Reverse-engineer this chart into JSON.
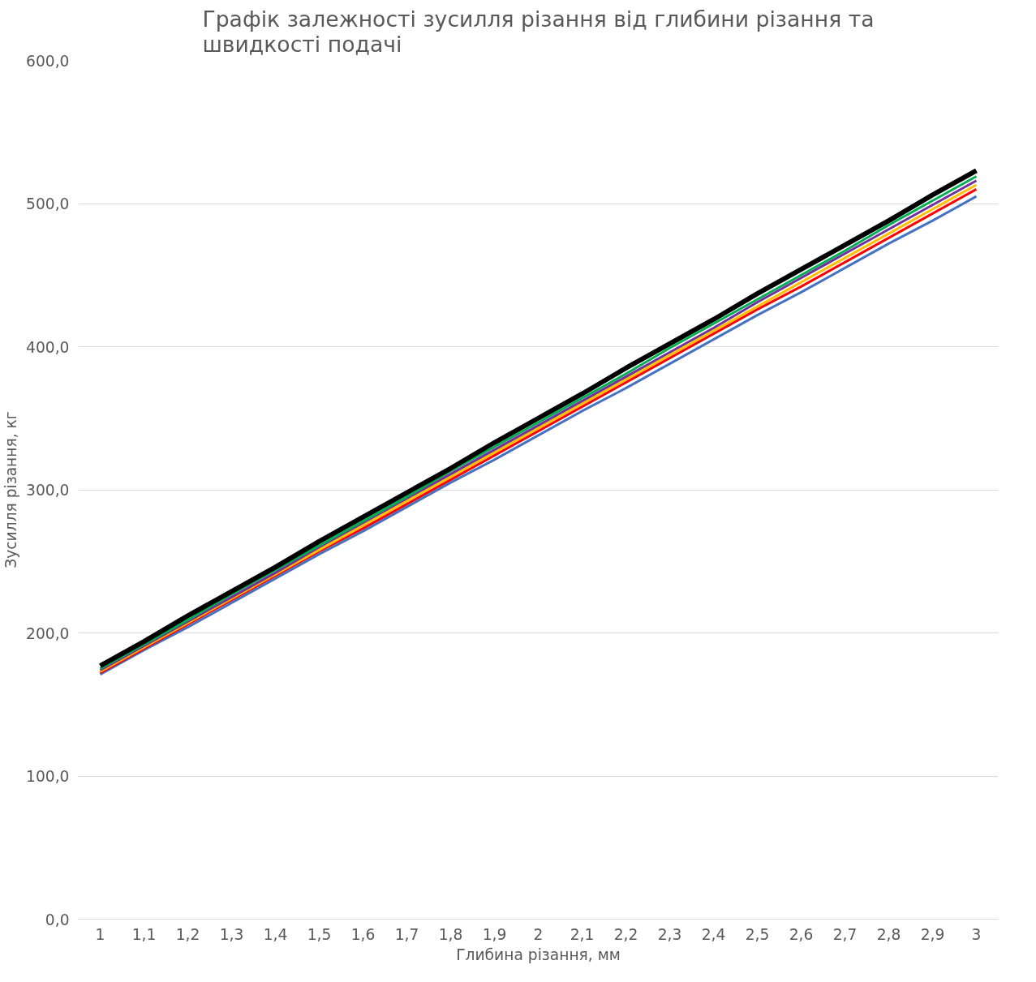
{
  "chart_data": {
    "type": "line",
    "title": "Графік залежності зусилля різання від глибини різання та швидкості подачі",
    "xlabel": "Глибина різання, мм",
    "ylabel": "Зусилля різання, кг",
    "categories": [
      "1",
      "1,1",
      "1,2",
      "1,3",
      "1,4",
      "1,5",
      "1,6",
      "1,7",
      "1,8",
      "1,9",
      "2",
      "2,1",
      "2,2",
      "2,3",
      "2,4",
      "2,5",
      "2,6",
      "2,7",
      "2,8",
      "2,9",
      "3"
    ],
    "series": [
      {
        "color": "#4472c4",
        "values": [
          171,
          188,
          204,
          221,
          238,
          255,
          271,
          288,
          305,
          321,
          338,
          355,
          371,
          388,
          405,
          422,
          438,
          455,
          472,
          488,
          505
        ]
      },
      {
        "color": "#ff0000",
        "values": [
          172,
          189,
          206,
          223,
          240,
          257,
          273,
          290,
          307,
          324,
          341,
          358,
          375,
          392,
          409,
          426,
          442,
          459,
          476,
          493,
          510
        ]
      },
      {
        "color": "#ffc000",
        "values": [
          173,
          190,
          207,
          224,
          241,
          258,
          275,
          292,
          309,
          326,
          343,
          360,
          377,
          394,
          411,
          428,
          445,
          462,
          479,
          496,
          513
        ]
      },
      {
        "color": "#7030a0",
        "values": [
          174,
          191,
          208,
          225,
          242,
          260,
          277,
          294,
          311,
          328,
          345,
          362,
          379,
          396,
          413,
          431,
          448,
          465,
          482,
          499,
          516
        ]
      },
      {
        "color": "#00b050",
        "values": [
          175,
          192,
          209,
          227,
          244,
          261,
          278,
          295,
          313,
          330,
          347,
          364,
          381,
          399,
          416,
          433,
          450,
          467,
          485,
          502,
          519
        ]
      },
      {
        "color": "#000000",
        "values": [
          177,
          194,
          212,
          229,
          246,
          264,
          281,
          298,
          315,
          333,
          350,
          367,
          385,
          402,
          419,
          437,
          454,
          471,
          488,
          506,
          523
        ]
      }
    ],
    "ylim": [
      0,
      600
    ],
    "yticks": [
      {
        "value": 0,
        "label": "0,0"
      },
      {
        "value": 100,
        "label": "100,0"
      },
      {
        "value": 200,
        "label": "200,0"
      },
      {
        "value": 300,
        "label": "300,0"
      },
      {
        "value": 400,
        "label": "400,0"
      },
      {
        "value": 500,
        "label": "500,0"
      },
      {
        "value": 600,
        "label": "600,0"
      }
    ],
    "grid": "y",
    "marker": "none",
    "line_style": "solid"
  }
}
